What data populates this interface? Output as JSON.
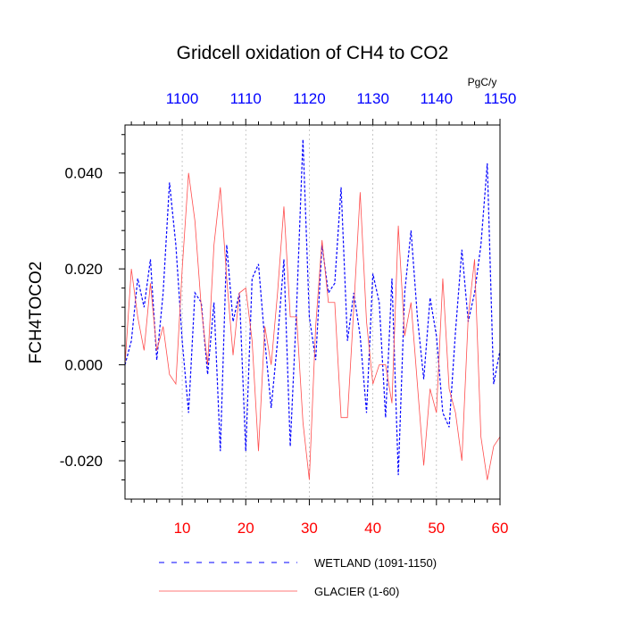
{
  "chart_data": {
    "type": "line",
    "title": "Gridcell oxidation of CH4 to CO2",
    "ylabel": "FCH4TOCO2",
    "units": "PgC/y",
    "xlim_bottom": [
      1,
      60
    ],
    "xlim_top": [
      1091,
      1150
    ],
    "ylim": [
      -0.028,
      0.05
    ],
    "bottom_ticks": [
      "10",
      "20",
      "30",
      "40",
      "50",
      "60"
    ],
    "top_ticks": [
      "1100",
      "1110",
      "1120",
      "1130",
      "1140",
      "1150"
    ],
    "y_ticks": [
      "-0.020",
      "0.000",
      "0.020",
      "0.040"
    ],
    "colors": {
      "wetland": "#0000ff",
      "glacier": "#ff4d4d",
      "top_axis": "#0000ff",
      "bottom_axis": "#ff0000",
      "grid": "#b0b0b0"
    },
    "series": [
      {
        "name": "WETLAND",
        "legend": "WETLAND (1091-1150)",
        "x_start": 1091,
        "values": [
          0.0,
          0.005,
          0.018,
          0.012,
          0.022,
          0.001,
          0.015,
          0.038,
          0.025,
          0.005,
          -0.01,
          0.015,
          0.013,
          -0.002,
          0.013,
          -0.018,
          0.025,
          0.009,
          0.015,
          -0.018,
          0.018,
          0.021,
          0.005,
          -0.009,
          0.005,
          0.022,
          -0.017,
          0.012,
          0.047,
          0.01,
          0.001,
          0.025,
          0.015,
          0.017,
          0.037,
          0.005,
          0.015,
          0.006,
          -0.01,
          0.019,
          0.013,
          -0.011,
          0.018,
          -0.023,
          0.015,
          0.028,
          0.01,
          -0.003,
          0.014,
          0.006,
          -0.01,
          -0.013,
          0.007,
          0.024,
          0.009,
          0.015,
          0.025,
          0.042,
          -0.004,
          0.003
        ]
      },
      {
        "name": "GLACIER",
        "legend": "GLACIER (1-60)",
        "x_start": 1,
        "values": [
          0.0,
          0.02,
          0.01,
          0.003,
          0.017,
          0.003,
          0.008,
          -0.002,
          -0.004,
          0.02,
          0.04,
          0.03,
          0.012,
          0.0,
          0.025,
          0.037,
          0.018,
          0.002,
          0.015,
          0.016,
          0.005,
          -0.018,
          0.008,
          0.0,
          0.015,
          0.033,
          0.01,
          0.01,
          -0.012,
          -0.024,
          0.008,
          0.026,
          0.013,
          0.013,
          -0.011,
          -0.011,
          0.012,
          0.036,
          0.009,
          -0.004,
          0.0,
          0.0,
          -0.008,
          0.029,
          0.006,
          0.013,
          -0.004,
          -0.021,
          -0.005,
          -0.01,
          0.018,
          -0.005,
          -0.01,
          -0.02,
          0.01,
          0.022,
          -0.015,
          -0.024,
          -0.017,
          -0.015
        ]
      }
    ]
  }
}
